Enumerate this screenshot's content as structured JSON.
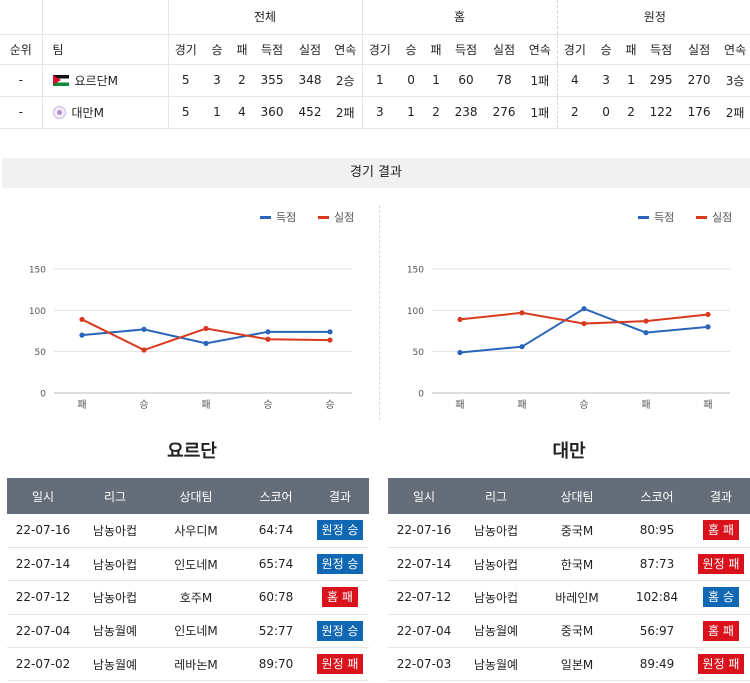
{
  "standings": {
    "groups": [
      "전체",
      "홈",
      "원정"
    ],
    "headers": {
      "rank": "순위",
      "team": "팀",
      "stats": [
        "경기",
        "승",
        "패",
        "득점",
        "실점",
        "연속"
      ]
    },
    "rows": [
      {
        "rank": "-",
        "team": "요르단M",
        "flag": "jordan-flag-icon",
        "total": [
          "5",
          "3",
          "2",
          "355",
          "348",
          "2승"
        ],
        "home": [
          "1",
          "0",
          "1",
          "60",
          "78",
          "1패"
        ],
        "away": [
          "4",
          "3",
          "1",
          "295",
          "270",
          "3승"
        ]
      },
      {
        "rank": "-",
        "team": "대만M",
        "flag": "chinese-taipei-emblem-icon",
        "total": [
          "5",
          "1",
          "4",
          "360",
          "452",
          "2패"
        ],
        "home": [
          "3",
          "1",
          "2",
          "238",
          "276",
          "1패"
        ],
        "away": [
          "2",
          "0",
          "2",
          "122",
          "176",
          "2패"
        ]
      }
    ]
  },
  "section_title": "경기 결과",
  "chart_data": [
    {
      "type": "line",
      "categories": [
        "패",
        "승",
        "패",
        "승",
        "승"
      ],
      "series": [
        {
          "name": "득점",
          "values": [
            70,
            77,
            60,
            74,
            74
          ]
        },
        {
          "name": "실점",
          "values": [
            89,
            52,
            78,
            65,
            64
          ]
        }
      ],
      "ylim": [
        0,
        150
      ],
      "yticks": [
        "0",
        "50",
        "100",
        "150"
      ],
      "colors": [
        "#2a64b8",
        "#d93a1e"
      ],
      "legend": "top-right",
      "grid": true
    },
    {
      "type": "line",
      "categories": [
        "패",
        "패",
        "승",
        "패",
        "패"
      ],
      "series": [
        {
          "name": "득점",
          "values": [
            49,
            56,
            102,
            73,
            80
          ]
        },
        {
          "name": "실점",
          "values": [
            89,
            97,
            84,
            87,
            95
          ]
        }
      ],
      "ylim": [
        0,
        150
      ],
      "yticks": [
        "0",
        "50",
        "100",
        "150"
      ],
      "colors": [
        "#2a64b8",
        "#d93a1e"
      ],
      "legend": "top-right",
      "grid": true
    }
  ],
  "team_titles": [
    "요르단",
    "대만"
  ],
  "results_headers": [
    "일시",
    "리그",
    "상대팀",
    "스코어",
    "결과"
  ],
  "results": [
    [
      {
        "date": "22-07-16",
        "league": "남농아컵",
        "opp": "사우디M",
        "score": "64:74",
        "result": "원정 승",
        "kind": "away-win"
      },
      {
        "date": "22-07-14",
        "league": "남농아컵",
        "opp": "인도네M",
        "score": "65:74",
        "result": "원정 승",
        "kind": "away-win"
      },
      {
        "date": "22-07-12",
        "league": "남농아컵",
        "opp": "호주M",
        "score": "60:78",
        "result": "홈 패",
        "kind": "home-loss"
      },
      {
        "date": "22-07-04",
        "league": "남농월예",
        "opp": "인도네M",
        "score": "52:77",
        "result": "원정 승",
        "kind": "away-win"
      },
      {
        "date": "22-07-02",
        "league": "남농월예",
        "opp": "레바논M",
        "score": "89:70",
        "result": "원정 패",
        "kind": "away-loss"
      }
    ],
    [
      {
        "date": "22-07-16",
        "league": "남농아컵",
        "opp": "중국M",
        "score": "80:95",
        "result": "홈 패",
        "kind": "home-loss"
      },
      {
        "date": "22-07-14",
        "league": "남농아컵",
        "opp": "한국M",
        "score": "87:73",
        "result": "원정 패",
        "kind": "away-loss"
      },
      {
        "date": "22-07-12",
        "league": "남농아컵",
        "opp": "바레인M",
        "score": "102:84",
        "result": "홈 승",
        "kind": "home-win"
      },
      {
        "date": "22-07-04",
        "league": "남농월예",
        "opp": "중국M",
        "score": "56:97",
        "result": "홈 패",
        "kind": "home-loss"
      },
      {
        "date": "22-07-03",
        "league": "남농월예",
        "opp": "일본M",
        "score": "89:49",
        "result": "원정 패",
        "kind": "away-loss"
      }
    ]
  ]
}
